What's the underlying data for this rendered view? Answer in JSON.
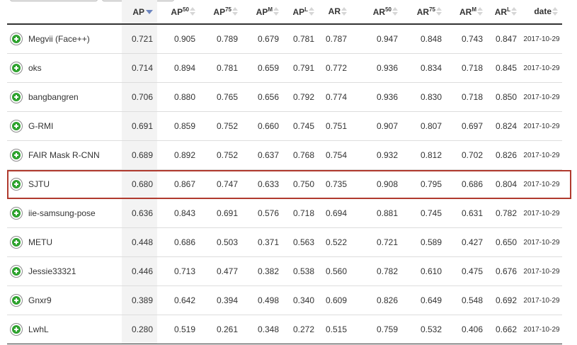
{
  "columns": [
    {
      "key": "name",
      "label": "",
      "sup": ""
    },
    {
      "key": "ap",
      "label": "AP",
      "sup": ""
    },
    {
      "key": "ap50",
      "label": "AP",
      "sup": "50"
    },
    {
      "key": "ap75",
      "label": "AP",
      "sup": "75"
    },
    {
      "key": "apm",
      "label": "AP",
      "sup": "M"
    },
    {
      "key": "apl",
      "label": "AP",
      "sup": "L"
    },
    {
      "key": "ar",
      "label": "AR",
      "sup": ""
    },
    {
      "key": "ar50",
      "label": "AR",
      "sup": "50"
    },
    {
      "key": "ar75",
      "label": "AR",
      "sup": "75"
    },
    {
      "key": "arm",
      "label": "AR",
      "sup": "M"
    },
    {
      "key": "arl",
      "label": "AR",
      "sup": "L"
    },
    {
      "key": "date",
      "label": "date",
      "sup": ""
    }
  ],
  "sorted_column": "ap",
  "highlighted_row": 5,
  "colors": {
    "expand_icon": "#2ea22e",
    "highlight_border": "#b03a2e",
    "sort_active": "#6d86c0"
  },
  "rows": [
    {
      "name": "Megvii (Face++)",
      "ap": "0.721",
      "ap50": "0.905",
      "ap75": "0.789",
      "apm": "0.679",
      "apl": "0.781",
      "ar": "0.787",
      "ar50": "0.947",
      "ar75": "0.848",
      "arm": "0.743",
      "arl": "0.847",
      "date": "2017-10-29"
    },
    {
      "name": "oks",
      "ap": "0.714",
      "ap50": "0.894",
      "ap75": "0.781",
      "apm": "0.659",
      "apl": "0.791",
      "ar": "0.772",
      "ar50": "0.936",
      "ar75": "0.834",
      "arm": "0.718",
      "arl": "0.845",
      "date": "2017-10-29"
    },
    {
      "name": "bangbangren",
      "ap": "0.706",
      "ap50": "0.880",
      "ap75": "0.765",
      "apm": "0.656",
      "apl": "0.792",
      "ar": "0.774",
      "ar50": "0.936",
      "ar75": "0.830",
      "arm": "0.718",
      "arl": "0.850",
      "date": "2017-10-29"
    },
    {
      "name": "G-RMI",
      "ap": "0.691",
      "ap50": "0.859",
      "ap75": "0.752",
      "apm": "0.660",
      "apl": "0.745",
      "ar": "0.751",
      "ar50": "0.907",
      "ar75": "0.807",
      "arm": "0.697",
      "arl": "0.824",
      "date": "2017-10-29"
    },
    {
      "name": "FAIR Mask R-CNN",
      "ap": "0.689",
      "ap50": "0.892",
      "ap75": "0.752",
      "apm": "0.637",
      "apl": "0.768",
      "ar": "0.754",
      "ar50": "0.932",
      "ar75": "0.812",
      "arm": "0.702",
      "arl": "0.826",
      "date": "2017-10-29"
    },
    {
      "name": "SJTU",
      "ap": "0.680",
      "ap50": "0.867",
      "ap75": "0.747",
      "apm": "0.633",
      "apl": "0.750",
      "ar": "0.735",
      "ar50": "0.908",
      "ar75": "0.795",
      "arm": "0.686",
      "arl": "0.804",
      "date": "2017-10-29"
    },
    {
      "name": "iie-samsung-pose",
      "ap": "0.636",
      "ap50": "0.843",
      "ap75": "0.691",
      "apm": "0.576",
      "apl": "0.718",
      "ar": "0.694",
      "ar50": "0.881",
      "ar75": "0.745",
      "arm": "0.631",
      "arl": "0.782",
      "date": "2017-10-29"
    },
    {
      "name": "METU",
      "ap": "0.448",
      "ap50": "0.686",
      "ap75": "0.503",
      "apm": "0.371",
      "apl": "0.563",
      "ar": "0.522",
      "ar50": "0.721",
      "ar75": "0.589",
      "arm": "0.427",
      "arl": "0.650",
      "date": "2017-10-29"
    },
    {
      "name": "Jessie33321",
      "ap": "0.446",
      "ap50": "0.713",
      "ap75": "0.477",
      "apm": "0.382",
      "apl": "0.538",
      "ar": "0.560",
      "ar50": "0.782",
      "ar75": "0.610",
      "arm": "0.475",
      "arl": "0.676",
      "date": "2017-10-29"
    },
    {
      "name": "Gnxr9",
      "ap": "0.389",
      "ap50": "0.642",
      "ap75": "0.394",
      "apm": "0.498",
      "apl": "0.340",
      "ar": "0.609",
      "ar50": "0.826",
      "ar75": "0.649",
      "arm": "0.548",
      "arl": "0.692",
      "date": "2017-10-29"
    },
    {
      "name": "LwhL",
      "ap": "0.280",
      "ap50": "0.519",
      "ap75": "0.261",
      "apm": "0.348",
      "apl": "0.272",
      "ar": "0.515",
      "ar50": "0.759",
      "ar75": "0.532",
      "arm": "0.406",
      "arl": "0.662",
      "date": "2017-10-29"
    }
  ]
}
